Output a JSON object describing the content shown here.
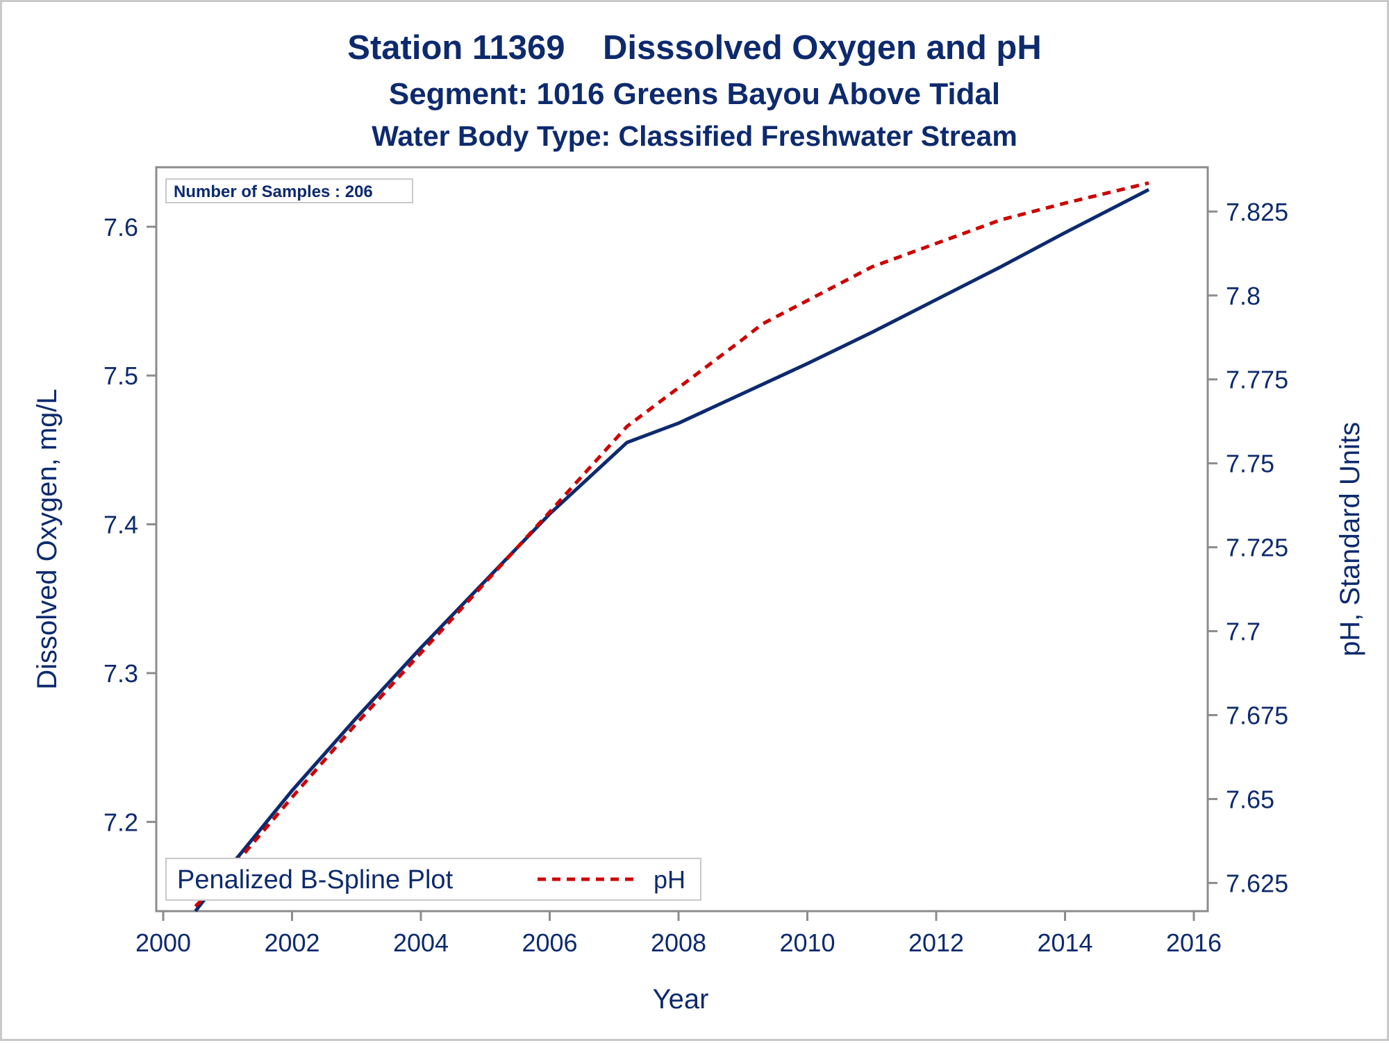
{
  "chart_data": {
    "type": "line",
    "title": "Station 11369    Disssolved Oxygen and pH",
    "subtitle": "Segment: 1016  Greens Bayou Above Tidal",
    "subtitle2": "Water Body Type: Classified Freshwater Stream",
    "xlabel": "Year",
    "ylabel": "Dissolved Oxygen, mg/L",
    "y2label": "pH, Standard Units",
    "xlim": [
      2000,
      2016
    ],
    "ylim": [
      7.14,
      7.64
    ],
    "y2lim": [
      7.6166,
      7.8382
    ],
    "xticks": [
      "2000",
      "2002",
      "2004",
      "2006",
      "2008",
      "2010",
      "2012",
      "2014",
      "2016"
    ],
    "yticks": [
      "7.2",
      "7.3",
      "7.4",
      "7.5",
      "7.6"
    ],
    "y2ticks": [
      "7.625",
      "7.65",
      "7.675",
      "7.7",
      "7.725",
      "7.75",
      "7.775",
      "7.8",
      "7.825"
    ],
    "grid": false,
    "annotation": "Number of Samples : 206",
    "legend": {
      "placement": "bottom-left",
      "title": "Penalized B-Spline Plot",
      "entries": [
        "pH"
      ]
    },
    "colors": {
      "do": "#0d2a6e",
      "ph": "#cc0000",
      "text": "#0d2a6e",
      "axis": "#8c8c8c"
    },
    "series": [
      {
        "axis": "left",
        "style": "solid",
        "x": [
          2000.5,
          2001.0,
          2002.0,
          2003.0,
          2004.0,
          2005.0,
          2006.0,
          2007.2,
          2008.0,
          2009.0,
          2010.0,
          2011.0,
          2012.0,
          2013.0,
          2014.0,
          2015.3
        ],
        "values": [
          7.14,
          7.168,
          7.221,
          7.27,
          7.317,
          7.362,
          7.407,
          7.455,
          7.468,
          7.488,
          7.508,
          7.529,
          7.551,
          7.573,
          7.596,
          7.625
        ]
      },
      {
        "name": "pH",
        "axis": "right",
        "style": "dashed",
        "x": [
          2000.5,
          2001.0,
          2002.0,
          2003.0,
          2004.0,
          2005.0,
          2006.0,
          2007.2,
          2008.0,
          2009.0,
          2009.3,
          2010.0,
          2011.0,
          2012.0,
          2013.0,
          2014.0,
          2015.3
        ],
        "values": [
          7.618,
          7.628,
          7.6505,
          7.6725,
          7.6935,
          7.7145,
          7.7355,
          7.761,
          7.7725,
          7.787,
          7.7915,
          7.7985,
          7.8085,
          7.8155,
          7.8225,
          7.8275,
          7.8335
        ]
      }
    ]
  }
}
